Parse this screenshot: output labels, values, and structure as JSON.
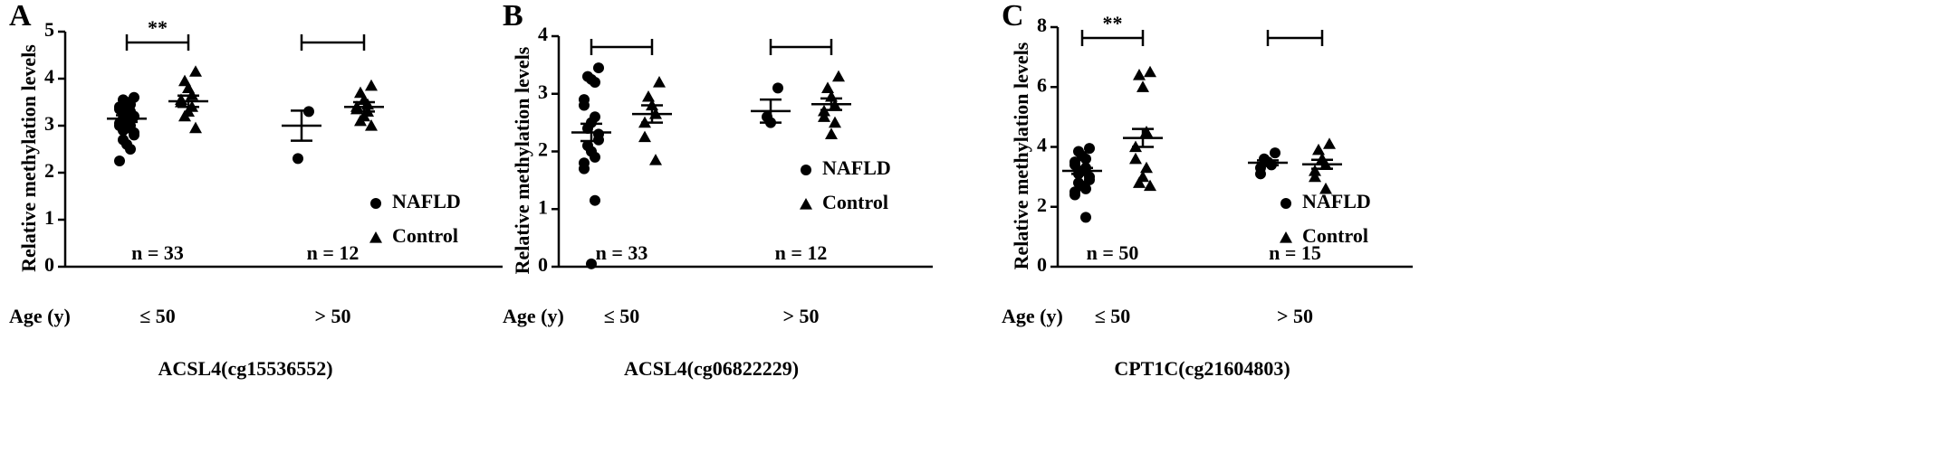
{
  "chart_data": [
    {
      "type": "dot",
      "panel": "A",
      "ylabel": "Relative methylation levels",
      "xlabel": "ACSL4(cg15536552)",
      "row_label": "Age (y)",
      "categories": [
        "≤ 50",
        "> 50"
      ],
      "n_labels": [
        "n = 33",
        "n = 12"
      ],
      "significance": [
        "**",
        null
      ],
      "ylim": [
        0,
        5
      ],
      "yticks": [
        0,
        1,
        2,
        3,
        4,
        5
      ],
      "legend": "lower right",
      "series": [
        {
          "name": "NAFLD",
          "marker": "circle",
          "color": "#000000",
          "values": [
            [
              3.6,
              3.55,
              3.5,
              3.45,
              3.4,
              3.35,
              3.3,
              3.3,
              3.25,
              3.2,
              3.2,
              3.15,
              3.1,
              3.1,
              3.05,
              3.0,
              3.0,
              2.95,
              2.9,
              2.85,
              2.8,
              2.7,
              2.6,
              2.5,
              2.25
            ],
            [
              3.3,
              2.3
            ]
          ],
          "mean": [
            3.15,
            3.0
          ],
          "sem": [
            0.07,
            0.32
          ]
        },
        {
          "name": "Control",
          "marker": "triangle",
          "color": "#000000",
          "values": [
            [
              4.15,
              3.95,
              3.8,
              3.65,
              3.55,
              3.5,
              3.4,
              3.3,
              3.2,
              2.95
            ],
            [
              3.85,
              3.7,
              3.55,
              3.45,
              3.4,
              3.35,
              3.3,
              3.2,
              3.1,
              3.0
            ]
          ],
          "mean": [
            3.52,
            3.4
          ],
          "sem": [
            0.12,
            0.1
          ]
        }
      ]
    },
    {
      "type": "dot",
      "panel": "B",
      "ylabel": "Relative methylation levels",
      "xlabel": "ACSL4(cg06822229)",
      "row_label": "Age (y)",
      "categories": [
        "≤ 50",
        "> 50"
      ],
      "n_labels": [
        "n = 33",
        "n = 12"
      ],
      "significance": [
        null,
        null
      ],
      "ylim": [
        0,
        4
      ],
      "yticks": [
        0,
        1,
        2,
        3,
        4
      ],
      "legend": "center right",
      "series": [
        {
          "name": "NAFLD",
          "marker": "circle",
          "color": "#000000",
          "values": [
            [
              3.45,
              3.3,
              3.25,
              3.2,
              2.9,
              2.8,
              2.6,
              2.5,
              2.4,
              2.3,
              2.2,
              2.1,
              2.0,
              1.9,
              1.8,
              1.7,
              1.15,
              0.05
            ],
            [
              3.1,
              2.6,
              2.5
            ]
          ],
          "mean": [
            2.33,
            2.7
          ],
          "sem": [
            0.15,
            0.2
          ]
        },
        {
          "name": "Control",
          "marker": "triangle",
          "color": "#000000",
          "values": [
            [
              3.2,
              2.95,
              2.8,
              2.65,
              2.5,
              2.25,
              1.85
            ],
            [
              3.3,
              3.1,
              2.95,
              2.8,
              2.7,
              2.6,
              2.5,
              2.3
            ]
          ],
          "mean": [
            2.65,
            2.82
          ],
          "sem": [
            0.15,
            0.1
          ]
        }
      ]
    },
    {
      "type": "dot",
      "panel": "C",
      "ylabel": "Relative methylation levels",
      "xlabel": "CPT1C(cg21604803)",
      "row_label": "Age (y)",
      "categories": [
        "≤ 50",
        "> 50"
      ],
      "n_labels": [
        "n = 50",
        "n = 15"
      ],
      "significance": [
        "**",
        null
      ],
      "ylim": [
        0,
        8
      ],
      "yticks": [
        0,
        2,
        4,
        6,
        8
      ],
      "legend": "lower right",
      "series": [
        {
          "name": "NAFLD",
          "marker": "circle",
          "color": "#000000",
          "values": [
            [
              3.95,
              3.85,
              3.7,
              3.6,
              3.5,
              3.4,
              3.3,
              3.2,
              3.1,
              3.0,
              2.9,
              2.8,
              2.7,
              2.6,
              2.5,
              2.4,
              1.65
            ],
            [
              3.8,
              3.6,
              3.5,
              3.4,
              3.3,
              3.1
            ]
          ],
          "mean": [
            3.2,
            3.47
          ],
          "sem": [
            0.1,
            0.08
          ]
        },
        {
          "name": "Control",
          "marker": "triangle",
          "color": "#000000",
          "values": [
            [
              6.5,
              6.4,
              6.0,
              4.5,
              4.0,
              3.6,
              3.3,
              3.0,
              2.8,
              2.7
            ],
            [
              4.1,
              3.9,
              3.6,
              3.4,
              3.2,
              3.0,
              2.6
            ]
          ],
          "mean": [
            4.3,
            3.42
          ],
          "sem": [
            0.3,
            0.15
          ]
        }
      ]
    }
  ]
}
